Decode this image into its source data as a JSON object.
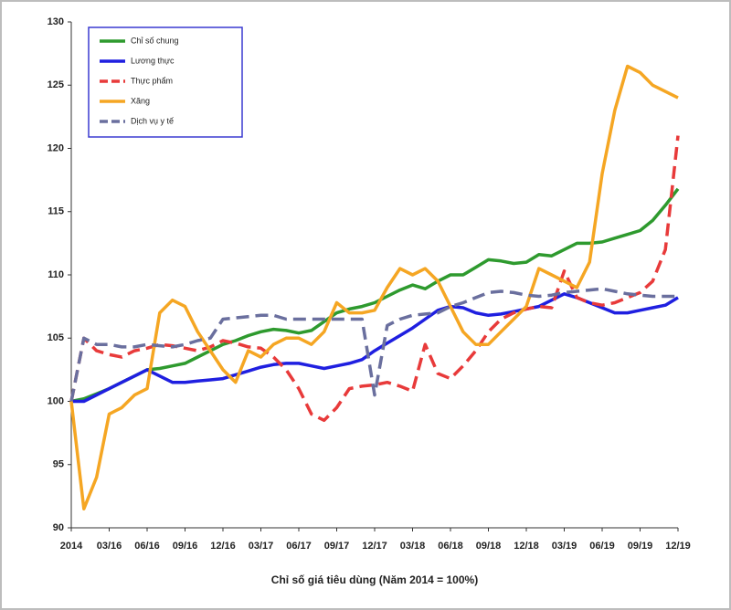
{
  "chart_data": {
    "type": "line",
    "x_label": "Chỉ số giá tiêu dùng (Năm 2014 = 100%)",
    "categories": [
      "2014",
      null,
      null,
      "03/16",
      null,
      null,
      "06/16",
      null,
      null,
      "09/16",
      null,
      null,
      "12/16",
      null,
      null,
      "03/17",
      null,
      null,
      "06/17",
      null,
      null,
      "09/17",
      null,
      null,
      "12/17",
      null,
      null,
      "03/18",
      null,
      null,
      "06/18",
      null,
      null,
      "09/18",
      null,
      null,
      "12/18",
      null,
      null,
      "03/19",
      null,
      null,
      "06/19",
      null,
      null,
      "09/19",
      null,
      null,
      "12/19"
    ],
    "ylim": [
      90,
      130
    ],
    "yticks": [
      90,
      95,
      100,
      105,
      110,
      115,
      120,
      125,
      130
    ],
    "grid": false,
    "legend_position": "upper-left",
    "series": [
      {
        "name": "Chỉ số chung",
        "color": "#2e9a2e",
        "dash": "solid",
        "values": [
          100,
          100.2,
          100.6,
          101,
          101.5,
          102,
          102.5,
          102.6,
          102.8,
          103,
          103.5,
          104,
          104.5,
          104.8,
          105.2,
          105.5,
          105.7,
          105.6,
          105.4,
          105.6,
          106.3,
          107,
          107.3,
          107.5,
          107.8,
          108.3,
          108.8,
          109.2,
          108.9,
          109.5,
          110,
          110,
          110.6,
          111.2,
          111.1,
          110.9,
          111,
          111.6,
          111.5,
          112,
          112.5,
          112.5,
          112.6,
          112.9,
          113.2,
          113.5,
          114.3,
          115.5,
          116.8
        ]
      },
      {
        "name": "Lương thực",
        "color": "#1f1fe0",
        "dash": "solid",
        "values": [
          100,
          100,
          100.5,
          101,
          101.5,
          102,
          102.5,
          102,
          101.5,
          101.5,
          101.6,
          101.7,
          101.8,
          102.1,
          102.4,
          102.7,
          102.9,
          103,
          103,
          102.8,
          102.6,
          102.8,
          103,
          103.3,
          104,
          104.6,
          105.2,
          105.8,
          106.5,
          107.2,
          107.5,
          107.4,
          107,
          106.8,
          106.9,
          107.1,
          107.3,
          107.5,
          108,
          108.5,
          108.2,
          107.8,
          107.4,
          107,
          107,
          107.2,
          107.4,
          107.6,
          108.2
        ]
      },
      {
        "name": "Thực phẩm",
        "color": "#e83a3a",
        "dash": "dashed",
        "values": [
          100,
          105,
          104,
          103.7,
          103.5,
          104,
          104.2,
          104.5,
          104.4,
          104.2,
          104,
          104.3,
          104.8,
          104.6,
          104.3,
          104.2,
          103.5,
          102.5,
          101,
          99,
          98.5,
          99.5,
          101,
          101.2,
          101.3,
          101.5,
          101.2,
          100.8,
          104.5,
          102.2,
          101.8,
          102.8,
          104,
          105.5,
          106.5,
          107,
          107.3,
          107.5,
          107.4,
          110.3,
          108.2,
          107.8,
          107.6,
          107.8,
          108.2,
          108.6,
          109.5,
          112,
          121
        ]
      },
      {
        "name": "Xăng",
        "color": "#f5a623",
        "dash": "solid",
        "values": [
          100,
          91.5,
          94,
          99,
          99.5,
          100.5,
          101,
          107,
          108,
          107.5,
          105.5,
          104,
          102.5,
          101.5,
          104,
          103.5,
          104.5,
          105,
          105,
          104.5,
          105.5,
          107.8,
          107,
          107,
          107.2,
          109,
          110.5,
          110,
          110.5,
          109.5,
          107.5,
          105.5,
          104.5,
          104.5,
          105.5,
          106.5,
          107.5,
          110.5,
          110,
          109.5,
          109,
          111,
          118,
          123,
          126.5,
          126,
          125,
          124.5,
          124
        ]
      },
      {
        "name": "Dịch vụ y tế",
        "color": "#6a6f9e",
        "dash": "dashed",
        "values": [
          100,
          105,
          104.5,
          104.5,
          104.3,
          104.3,
          104.5,
          104.4,
          104.3,
          104.5,
          104.8,
          105,
          106.5,
          106.6,
          106.7,
          106.8,
          106.8,
          106.5,
          106.5,
          106.5,
          106.5,
          106.5,
          106.5,
          106.5,
          100.5,
          106,
          106.5,
          106.8,
          106.9,
          107,
          107.5,
          107.8,
          108.2,
          108.6,
          108.7,
          108.6,
          108.4,
          108.3,
          108.4,
          108.6,
          108.7,
          108.8,
          108.9,
          108.7,
          108.5,
          108.4,
          108.3,
          108.3,
          108.3
        ]
      }
    ]
  }
}
